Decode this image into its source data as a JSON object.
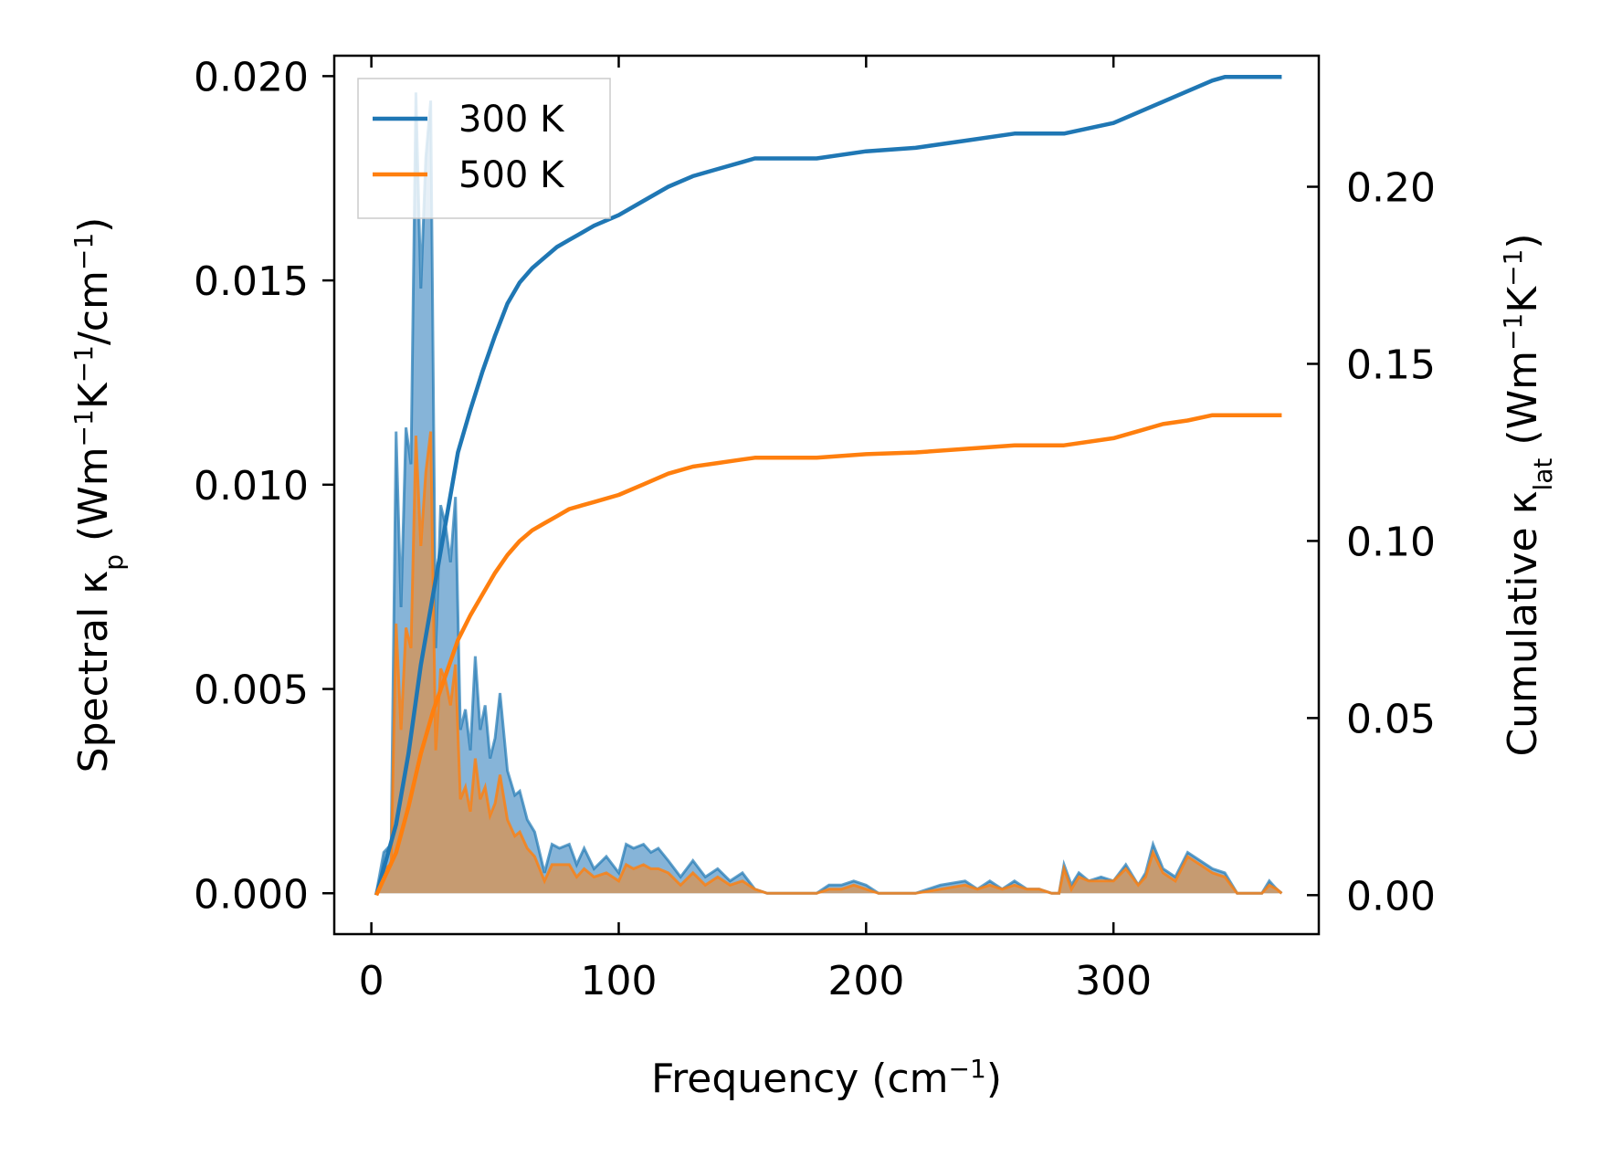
{
  "chart_data": {
    "type": "area+line",
    "xlabel": "Frequency (cm⁻¹)",
    "ylabel_left": "Spectral κₚ (Wm⁻¹K⁻¹/cm⁻¹)",
    "ylabel_right": "Cumulative κₗₐₜ (Wm⁻¹K⁻¹)",
    "xlim": [
      -15,
      383
    ],
    "ylim_left": [
      -0.001,
      0.0205
    ],
    "ylim_right": [
      -0.011,
      0.237
    ],
    "x_ticks": [
      0,
      100,
      200,
      300
    ],
    "x_tick_labels": [
      "0",
      "100",
      "200",
      "300"
    ],
    "y_left_ticks": [
      0.0,
      0.005,
      0.01,
      0.015,
      0.02
    ],
    "y_left_tick_labels": [
      "0.000",
      "0.005",
      "0.010",
      "0.015",
      "0.020"
    ],
    "y_right_ticks": [
      0.0,
      0.05,
      0.1,
      0.15,
      0.2
    ],
    "y_right_tick_labels": [
      "0.00",
      "0.05",
      "0.10",
      "0.15",
      "0.20"
    ],
    "legend": {
      "location": "top-left",
      "entries": [
        "300 K",
        "500 K"
      ]
    },
    "colors": {
      "300 K": "#1f77b4",
      "500 K": "#ff7f0e",
      "area_300": "#7fb0d6",
      "area_500": "#c99a6c"
    },
    "spectral_x": [
      2,
      5,
      8,
      10,
      12,
      14,
      16,
      18,
      20,
      22,
      24,
      26,
      28,
      30,
      32,
      34,
      36,
      38,
      40,
      42,
      44,
      46,
      48,
      50,
      52,
      55,
      58,
      60,
      63,
      66,
      70,
      73,
      76,
      80,
      83,
      86,
      90,
      95,
      100,
      103,
      106,
      110,
      113,
      116,
      120,
      125,
      130,
      135,
      140,
      145,
      150,
      155,
      160,
      170,
      180,
      185,
      190,
      195,
      200,
      205,
      210,
      220,
      230,
      240,
      245,
      250,
      255,
      260,
      265,
      270,
      275,
      278,
      280,
      283,
      286,
      290,
      295,
      300,
      305,
      310,
      313,
      316,
      320,
      325,
      330,
      335,
      340,
      345,
      350,
      355,
      360,
      363,
      366,
      368
    ],
    "spectral_300K": [
      0.0,
      0.001,
      0.0012,
      0.0113,
      0.007,
      0.0114,
      0.0105,
      0.0196,
      0.0148,
      0.018,
      0.0194,
      0.006,
      0.0095,
      0.009,
      0.0081,
      0.0097,
      0.004,
      0.0045,
      0.0035,
      0.0058,
      0.004,
      0.0046,
      0.0033,
      0.0038,
      0.0049,
      0.003,
      0.0024,
      0.0025,
      0.0018,
      0.0015,
      0.0005,
      0.0012,
      0.0011,
      0.0012,
      0.0007,
      0.0011,
      0.0006,
      0.0009,
      0.0005,
      0.0012,
      0.0011,
      0.0012,
      0.001,
      0.0011,
      0.0008,
      0.0004,
      0.0008,
      0.0004,
      0.0006,
      0.0003,
      0.0005,
      0.0001,
      0.0,
      0.0,
      0.0,
      0.0002,
      0.0002,
      0.0003,
      0.0002,
      0.0,
      0.0,
      0.0,
      0.0002,
      0.0003,
      0.0001,
      0.0003,
      0.0001,
      0.0003,
      0.0001,
      0.0001,
      0.0,
      0.0,
      0.0007,
      0.0002,
      0.0005,
      0.0003,
      0.0004,
      0.0003,
      0.0007,
      0.0002,
      0.0005,
      0.0012,
      0.0006,
      0.0004,
      0.001,
      0.0008,
      0.0006,
      0.0005,
      0.0,
      0.0,
      0.0,
      0.0003,
      0.0001,
      0.0
    ],
    "spectral_500K": [
      0.0,
      0.0006,
      0.0007,
      0.0066,
      0.004,
      0.0065,
      0.006,
      0.0112,
      0.0085,
      0.0103,
      0.0113,
      0.0035,
      0.0055,
      0.0052,
      0.0046,
      0.0056,
      0.0023,
      0.0026,
      0.002,
      0.0033,
      0.0023,
      0.0026,
      0.0019,
      0.0022,
      0.0029,
      0.0018,
      0.0014,
      0.0015,
      0.0011,
      0.0009,
      0.0003,
      0.0007,
      0.0007,
      0.0007,
      0.0004,
      0.0006,
      0.0004,
      0.0005,
      0.0003,
      0.0007,
      0.0006,
      0.0007,
      0.0006,
      0.0006,
      0.0005,
      0.0002,
      0.0005,
      0.0002,
      0.0004,
      0.0002,
      0.0003,
      0.0001,
      0.0,
      0.0,
      0.0,
      0.0001,
      0.0001,
      0.0002,
      0.0001,
      0.0,
      0.0,
      0.0,
      0.0001,
      0.0002,
      0.0001,
      0.0002,
      0.0001,
      0.0002,
      0.0001,
      0.0001,
      0.0,
      0.0,
      0.0006,
      0.0001,
      0.0004,
      0.0003,
      0.0003,
      0.0003,
      0.0006,
      0.0002,
      0.0004,
      0.001,
      0.0005,
      0.0003,
      0.0009,
      0.0007,
      0.0005,
      0.0004,
      0.0,
      0.0,
      0.0,
      0.0002,
      0.0001,
      0.0
    ],
    "cumulative_x": [
      2,
      10,
      15,
      20,
      25,
      30,
      35,
      40,
      45,
      50,
      55,
      60,
      65,
      70,
      75,
      80,
      85,
      90,
      100,
      110,
      120,
      130,
      140,
      150,
      155,
      160,
      180,
      200,
      220,
      240,
      260,
      270,
      280,
      300,
      310,
      320,
      330,
      340,
      345,
      350,
      360,
      368
    ],
    "cumulative_300K": [
      0.0,
      0.02,
      0.04,
      0.065,
      0.085,
      0.105,
      0.125,
      0.137,
      0.148,
      0.158,
      0.167,
      0.173,
      0.177,
      0.18,
      0.183,
      0.185,
      0.187,
      0.189,
      0.192,
      0.196,
      0.2,
      0.203,
      0.205,
      0.207,
      0.208,
      0.208,
      0.208,
      0.21,
      0.211,
      0.213,
      0.215,
      0.215,
      0.215,
      0.218,
      0.221,
      0.224,
      0.227,
      0.23,
      0.231,
      0.231,
      0.231,
      0.231
    ],
    "cumulative_500K": [
      0.0,
      0.012,
      0.025,
      0.04,
      0.052,
      0.062,
      0.072,
      0.079,
      0.085,
      0.091,
      0.096,
      0.1,
      0.103,
      0.105,
      0.107,
      0.109,
      0.11,
      0.111,
      0.113,
      0.116,
      0.119,
      0.121,
      0.122,
      0.123,
      0.1235,
      0.1235,
      0.1235,
      0.1245,
      0.125,
      0.126,
      0.127,
      0.127,
      0.127,
      0.129,
      0.131,
      0.133,
      0.134,
      0.1355,
      0.1355,
      0.1355,
      0.1355,
      0.1355
    ]
  }
}
